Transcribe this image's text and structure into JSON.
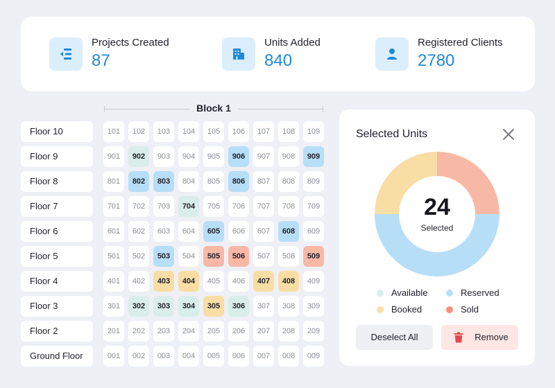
{
  "stats": [
    {
      "label": "Projects Created",
      "value": "87",
      "icon": "project-list-icon"
    },
    {
      "label": "Units Added",
      "value": "840",
      "icon": "building-icon"
    },
    {
      "label": "Registered Clients",
      "value": "2780",
      "icon": "user-icon"
    }
  ],
  "block": {
    "title": "Block 1"
  },
  "floors": [
    {
      "label": "Floor 10",
      "units": [
        {
          "n": "101",
          "s": "none"
        },
        {
          "n": "102",
          "s": "none"
        },
        {
          "n": "103",
          "s": "none"
        },
        {
          "n": "104",
          "s": "none"
        },
        {
          "n": "105",
          "s": "none"
        },
        {
          "n": "106",
          "s": "none"
        },
        {
          "n": "107",
          "s": "none"
        },
        {
          "n": "108",
          "s": "none"
        },
        {
          "n": "109",
          "s": "none"
        }
      ]
    },
    {
      "label": "Floor 9",
      "units": [
        {
          "n": "901",
          "s": "none"
        },
        {
          "n": "902",
          "s": "available"
        },
        {
          "n": "903",
          "s": "none"
        },
        {
          "n": "904",
          "s": "none"
        },
        {
          "n": "905",
          "s": "none"
        },
        {
          "n": "906",
          "s": "reserved"
        },
        {
          "n": "907",
          "s": "none"
        },
        {
          "n": "908",
          "s": "none"
        },
        {
          "n": "909",
          "s": "reserved"
        }
      ]
    },
    {
      "label": "Floor 8",
      "units": [
        {
          "n": "801",
          "s": "none"
        },
        {
          "n": "802",
          "s": "reserved"
        },
        {
          "n": "803",
          "s": "reserved"
        },
        {
          "n": "804",
          "s": "none"
        },
        {
          "n": "805",
          "s": "none"
        },
        {
          "n": "806",
          "s": "reserved"
        },
        {
          "n": "807",
          "s": "none"
        },
        {
          "n": "808",
          "s": "none"
        },
        {
          "n": "809",
          "s": "none"
        }
      ]
    },
    {
      "label": "Floor 7",
      "units": [
        {
          "n": "701",
          "s": "none"
        },
        {
          "n": "702",
          "s": "none"
        },
        {
          "n": "703",
          "s": "none"
        },
        {
          "n": "704",
          "s": "available"
        },
        {
          "n": "705",
          "s": "none"
        },
        {
          "n": "706",
          "s": "none"
        },
        {
          "n": "707",
          "s": "none"
        },
        {
          "n": "708",
          "s": "none"
        },
        {
          "n": "709",
          "s": "none"
        }
      ]
    },
    {
      "label": "Floor 6",
      "units": [
        {
          "n": "601",
          "s": "none"
        },
        {
          "n": "602",
          "s": "none"
        },
        {
          "n": "603",
          "s": "none"
        },
        {
          "n": "604",
          "s": "none"
        },
        {
          "n": "605",
          "s": "reserved"
        },
        {
          "n": "606",
          "s": "none"
        },
        {
          "n": "607",
          "s": "none"
        },
        {
          "n": "608",
          "s": "reserved"
        },
        {
          "n": "609",
          "s": "none"
        }
      ]
    },
    {
      "label": "Floor 5",
      "units": [
        {
          "n": "501",
          "s": "none"
        },
        {
          "n": "502",
          "s": "none"
        },
        {
          "n": "503",
          "s": "reserved"
        },
        {
          "n": "504",
          "s": "none"
        },
        {
          "n": "505",
          "s": "sold"
        },
        {
          "n": "506",
          "s": "sold"
        },
        {
          "n": "507",
          "s": "none"
        },
        {
          "n": "508",
          "s": "none"
        },
        {
          "n": "509",
          "s": "sold"
        }
      ]
    },
    {
      "label": "Floor 4",
      "units": [
        {
          "n": "401",
          "s": "none"
        },
        {
          "n": "402",
          "s": "none"
        },
        {
          "n": "403",
          "s": "booked"
        },
        {
          "n": "404",
          "s": "booked"
        },
        {
          "n": "405",
          "s": "none"
        },
        {
          "n": "406",
          "s": "none"
        },
        {
          "n": "407",
          "s": "booked"
        },
        {
          "n": "408",
          "s": "booked"
        },
        {
          "n": "409",
          "s": "none"
        }
      ]
    },
    {
      "label": "Floor 3",
      "units": [
        {
          "n": "301",
          "s": "none"
        },
        {
          "n": "302",
          "s": "available"
        },
        {
          "n": "303",
          "s": "available"
        },
        {
          "n": "304",
          "s": "available"
        },
        {
          "n": "305",
          "s": "booked"
        },
        {
          "n": "306",
          "s": "available"
        },
        {
          "n": "307",
          "s": "none"
        },
        {
          "n": "308",
          "s": "none"
        },
        {
          "n": "309",
          "s": "none"
        }
      ]
    },
    {
      "label": "Floor 2",
      "units": [
        {
          "n": "201",
          "s": "none"
        },
        {
          "n": "202",
          "s": "none"
        },
        {
          "n": "203",
          "s": "none"
        },
        {
          "n": "204",
          "s": "none"
        },
        {
          "n": "205",
          "s": "none"
        },
        {
          "n": "206",
          "s": "none"
        },
        {
          "n": "207",
          "s": "none"
        },
        {
          "n": "208",
          "s": "none"
        },
        {
          "n": "209",
          "s": "none"
        }
      ]
    },
    {
      "label": "Ground Floor",
      "units": [
        {
          "n": "001",
          "s": "none"
        },
        {
          "n": "002",
          "s": "none"
        },
        {
          "n": "003",
          "s": "none"
        },
        {
          "n": "004",
          "s": "none"
        },
        {
          "n": "005",
          "s": "none"
        },
        {
          "n": "006",
          "s": "none"
        },
        {
          "n": "007",
          "s": "none"
        },
        {
          "n": "008",
          "s": "none"
        },
        {
          "n": "009",
          "s": "none"
        }
      ]
    }
  ],
  "panel": {
    "title": "Selected Units",
    "count": "24",
    "count_label": "Selected",
    "deselect_label": "Deselect All",
    "remove_label": "Remove"
  },
  "chart_data": {
    "type": "pie",
    "donut": true,
    "title": "Selected Units",
    "center_value": 24,
    "center_label": "Selected",
    "categories": [
      "Available",
      "Reserved",
      "Booked",
      "Sold"
    ],
    "values": [
      0,
      50,
      25,
      25
    ],
    "unit": "percent of ring (estimated)",
    "colors": [
      "#d9eeea",
      "#b7def7",
      "#f8dea5",
      "#f8b8a6"
    ],
    "legend": "bottom"
  },
  "legend": [
    {
      "label": "Available",
      "color": "#d9eeea"
    },
    {
      "label": "Reserved",
      "color": "#b7def7"
    },
    {
      "label": "Booked",
      "color": "#f8dea5"
    },
    {
      "label": "Sold",
      "color": "#f8927a"
    }
  ],
  "colors": {
    "accent": "#1e8ad8",
    "icon_bg": "#dbeefb",
    "available": "#d9eeea",
    "reserved": "#b7def7",
    "booked": "#f8dea5",
    "sold": "#f8b8a6",
    "remove_icon": "#e5484d"
  }
}
